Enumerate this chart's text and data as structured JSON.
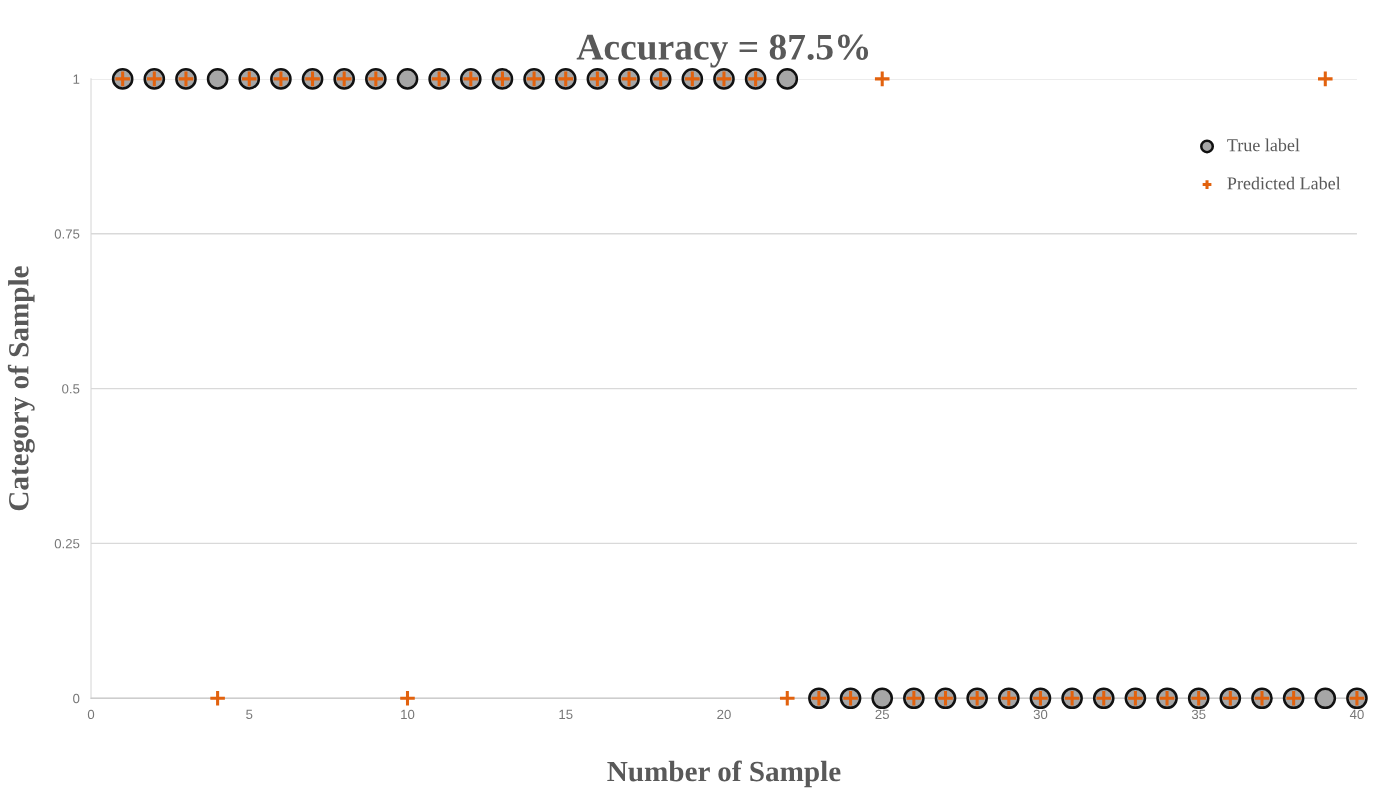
{
  "chart_data": {
    "type": "scatter",
    "title": "Accuracy = 87.5%",
    "xlabel": "Number of Sample",
    "ylabel": "Category of Sample",
    "x": [
      1,
      2,
      3,
      4,
      5,
      6,
      7,
      8,
      9,
      10,
      11,
      12,
      13,
      14,
      15,
      16,
      17,
      18,
      19,
      20,
      21,
      22,
      23,
      24,
      25,
      26,
      27,
      28,
      29,
      30,
      31,
      32,
      33,
      34,
      35,
      36,
      37,
      38,
      39,
      40
    ],
    "series": [
      {
        "name": "True label",
        "color": "#a6a6a6",
        "marker": "circle",
        "values": [
          1,
          1,
          1,
          1,
          1,
          1,
          1,
          1,
          1,
          1,
          1,
          1,
          1,
          1,
          1,
          1,
          1,
          1,
          1,
          1,
          1,
          1,
          0,
          0,
          0,
          0,
          0,
          0,
          0,
          0,
          0,
          0,
          0,
          0,
          0,
          0,
          0,
          0,
          0,
          0
        ]
      },
      {
        "name": "Predicted Label",
        "color": "#e2620e",
        "marker": "cross",
        "values": [
          1,
          1,
          1,
          0,
          1,
          1,
          1,
          1,
          1,
          0,
          1,
          1,
          1,
          1,
          1,
          1,
          1,
          1,
          1,
          1,
          1,
          0,
          0,
          0,
          1,
          0,
          0,
          0,
          0,
          0,
          0,
          0,
          0,
          0,
          0,
          0,
          0,
          0,
          1,
          0
        ]
      }
    ],
    "xlim": [
      0,
      40
    ],
    "xticks": [
      0,
      5,
      10,
      15,
      20,
      25,
      30,
      35,
      40
    ],
    "ylim": [
      0,
      1
    ],
    "yticks": [
      0,
      0.25,
      0.5,
      0.75,
      1
    ],
    "grid": "y",
    "legend": "top right"
  }
}
